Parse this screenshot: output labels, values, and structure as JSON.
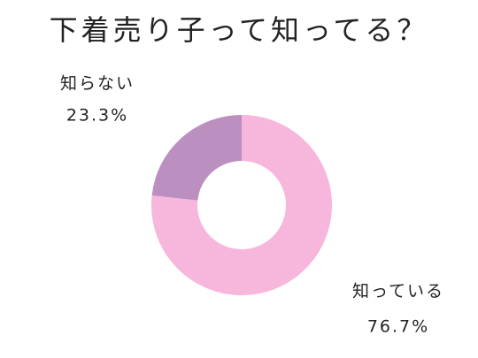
{
  "chart_data": {
    "type": "donut",
    "title": "下着売り子って知ってる？",
    "categories": [
      "知っている",
      "知らない"
    ],
    "values": [
      76.7,
      23.3
    ],
    "value_labels": [
      "76.7%",
      "23.3%"
    ],
    "colors": [
      "#f7b6dc",
      "#bb8fc0"
    ]
  }
}
